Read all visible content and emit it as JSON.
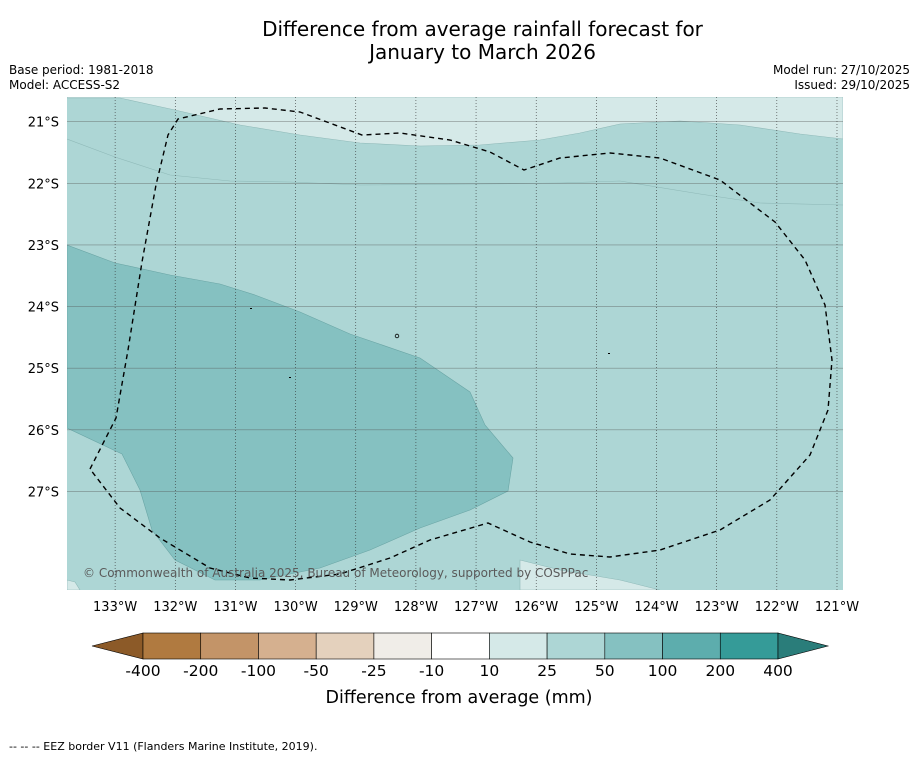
{
  "header": {
    "title_line1": "Difference from average rainfall forecast for",
    "title_line2": "January to March 2026",
    "base_period": "Base period: 1981-2018",
    "model": "Model: ACCESS-S2",
    "model_run": "Model run: 27/10/2025",
    "issued": "Issued: 29/10/2025"
  },
  "map": {
    "copyright": "© Commonwealth of Australia 2025, Bureau of Meteorology, supported by COSPPac"
  },
  "colorbar": {
    "label": "Difference from average (mm)",
    "ticks": [
      "-400",
      "-200",
      "-100",
      "-50",
      "-25",
      "-10",
      "10",
      "25",
      "50",
      "100",
      "200",
      "400"
    ],
    "colors": [
      "#8c5a28",
      "#b07a40",
      "#c39468",
      "#d5b08f",
      "#e4d1bd",
      "#f0ede8",
      "#ffffff",
      "#d5e9e8",
      "#add6d5",
      "#85c1c1",
      "#5dadad",
      "#359b98",
      "#2a7d7a"
    ]
  },
  "chart_data": {
    "type": "heatmap",
    "title": "Difference from average rainfall forecast for January to March 2026",
    "xlabel": "",
    "ylabel": "",
    "x_ticks": [
      "133°W",
      "132°W",
      "131°W",
      "130°W",
      "129°W",
      "128°W",
      "127°W",
      "126°W",
      "125°W",
      "124°W",
      "123°W",
      "122°W",
      "121°W"
    ],
    "y_ticks": [
      "21°S",
      "22°S",
      "23°S",
      "24°S",
      "25°S",
      "26°S",
      "27°S"
    ],
    "xlim": [
      -133.8,
      -120.9
    ],
    "ylim": [
      -28.6,
      -20.6
    ],
    "levels": [
      -400,
      -200,
      -100,
      -50,
      -25,
      -10,
      10,
      25,
      50,
      100,
      200,
      400
    ],
    "regions": [
      {
        "name": "10 to 25 mm",
        "range": [
          10,
          25
        ]
      },
      {
        "name": "25 to 50 mm",
        "range": [
          25,
          50
        ]
      },
      {
        "name": "50 to 100 mm",
        "range": [
          50,
          100
        ]
      }
    ],
    "eez_label": "--  --  -- EEZ border V11 (Flanders Marine Institute, 2019)."
  }
}
